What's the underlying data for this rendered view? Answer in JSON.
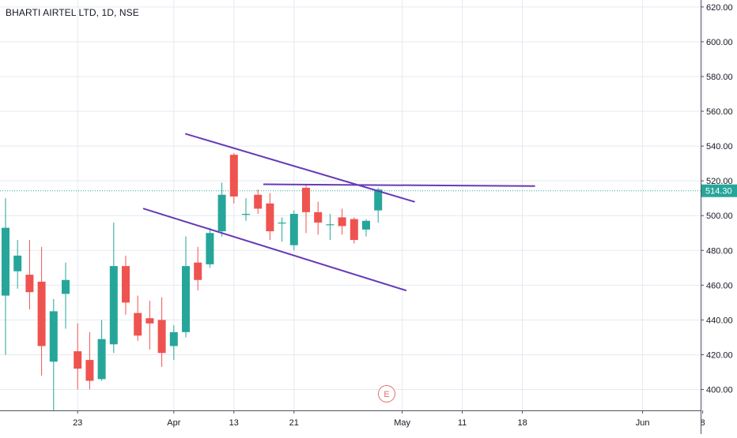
{
  "header": {
    "title": "BHARTI AIRTEL LTD, 1D, NSE"
  },
  "earnings_marker": {
    "label": "E",
    "color": "#e36f6f"
  },
  "colors": {
    "up": "#26a69a",
    "down": "#ef5350",
    "trendline": "#673ab7",
    "price_line": "#26a69a",
    "grid": "#e6e9f0"
  },
  "chart_data": {
    "type": "candlestick",
    "y_axis": {
      "min": 388,
      "max": 624,
      "ticks": [
        620,
        600,
        580,
        560,
        540,
        520,
        500,
        480,
        460,
        440,
        420,
        400
      ],
      "tick_format": "0.00"
    },
    "x_axis": {
      "ticks": [
        {
          "label": "23",
          "slot": 6
        },
        {
          "label": "Apr",
          "slot": 14
        },
        {
          "label": "13",
          "slot": 19
        },
        {
          "label": "21",
          "slot": 24
        },
        {
          "label": "May",
          "slot": 33
        },
        {
          "label": "11",
          "slot": 38
        },
        {
          "label": "18",
          "slot": 43
        },
        {
          "label": "Jun",
          "slot": 53
        },
        {
          "label": "8",
          "slot": 58
        }
      ]
    },
    "last_price": {
      "value": 514.3,
      "label": "514.30"
    },
    "grid": true,
    "candles": [
      {
        "slot": 0,
        "o": 454,
        "h": 510,
        "l": 420,
        "c": 493
      },
      {
        "slot": 1,
        "o": 468,
        "h": 486,
        "l": 458,
        "c": 477
      },
      {
        "slot": 2,
        "o": 466,
        "h": 486,
        "l": 446,
        "c": 456
      },
      {
        "slot": 3,
        "o": 462,
        "h": 482,
        "l": 408,
        "c": 425
      },
      {
        "slot": 4,
        "o": 416,
        "h": 452,
        "l": 388,
        "c": 445
      },
      {
        "slot": 5,
        "o": 455,
        "h": 473,
        "l": 435,
        "c": 463
      },
      {
        "slot": 6,
        "o": 422,
        "h": 438,
        "l": 400,
        "c": 412
      },
      {
        "slot": 7,
        "o": 417,
        "h": 433,
        "l": 400,
        "c": 405
      },
      {
        "slot": 8,
        "o": 406,
        "h": 440,
        "l": 405,
        "c": 429
      },
      {
        "slot": 9,
        "o": 426,
        "h": 496,
        "l": 421,
        "c": 471
      },
      {
        "slot": 10,
        "o": 471,
        "h": 477,
        "l": 443,
        "c": 450
      },
      {
        "slot": 11,
        "o": 444,
        "h": 454,
        "l": 428,
        "c": 431
      },
      {
        "slot": 12,
        "o": 441,
        "h": 451,
        "l": 423,
        "c": 438
      },
      {
        "slot": 13,
        "o": 440,
        "h": 453,
        "l": 413,
        "c": 421
      },
      {
        "slot": 14,
        "o": 425,
        "h": 437,
        "l": 417,
        "c": 433
      },
      {
        "slot": 15,
        "o": 433,
        "h": 488,
        "l": 430,
        "c": 471
      },
      {
        "slot": 16,
        "o": 473,
        "h": 482,
        "l": 457,
        "c": 463
      },
      {
        "slot": 17,
        "o": 472,
        "h": 493,
        "l": 470,
        "c": 490
      },
      {
        "slot": 18,
        "o": 491,
        "h": 519,
        "l": 488,
        "c": 512
      },
      {
        "slot": 19,
        "o": 535,
        "h": 536,
        "l": 507,
        "c": 511
      },
      {
        "slot": 20,
        "o": 501,
        "h": 510,
        "l": 497,
        "c": 501
      },
      {
        "slot": 21,
        "o": 512,
        "h": 515,
        "l": 501,
        "c": 504
      },
      {
        "slot": 22,
        "o": 507,
        "h": 513,
        "l": 486,
        "c": 491
      },
      {
        "slot": 23,
        "o": 496,
        "h": 499,
        "l": 485,
        "c": 496
      },
      {
        "slot": 24,
        "o": 483,
        "h": 503,
        "l": 480,
        "c": 501
      },
      {
        "slot": 25,
        "o": 516,
        "h": 518,
        "l": 490,
        "c": 502
      },
      {
        "slot": 26,
        "o": 502,
        "h": 508,
        "l": 489,
        "c": 496
      },
      {
        "slot": 27,
        "o": 495,
        "h": 501,
        "l": 486,
        "c": 495
      },
      {
        "slot": 28,
        "o": 499,
        "h": 504,
        "l": 489,
        "c": 494
      },
      {
        "slot": 29,
        "o": 498,
        "h": 499,
        "l": 484,
        "c": 486
      },
      {
        "slot": 30,
        "o": 492,
        "h": 498,
        "l": 488,
        "c": 497
      },
      {
        "slot": 31,
        "o": 503,
        "h": 516,
        "l": 496,
        "c": 515
      }
    ],
    "trendlines": [
      {
        "from": {
          "slot": 15,
          "price": 547
        },
        "to": {
          "slot": 34,
          "price": 508
        }
      },
      {
        "from": {
          "slot": 11.5,
          "price": 504
        },
        "to": {
          "slot": 33.3,
          "price": 457
        }
      },
      {
        "from": {
          "slot": 21.5,
          "price": 518
        },
        "to": {
          "slot": 44,
          "price": 517
        }
      }
    ]
  }
}
